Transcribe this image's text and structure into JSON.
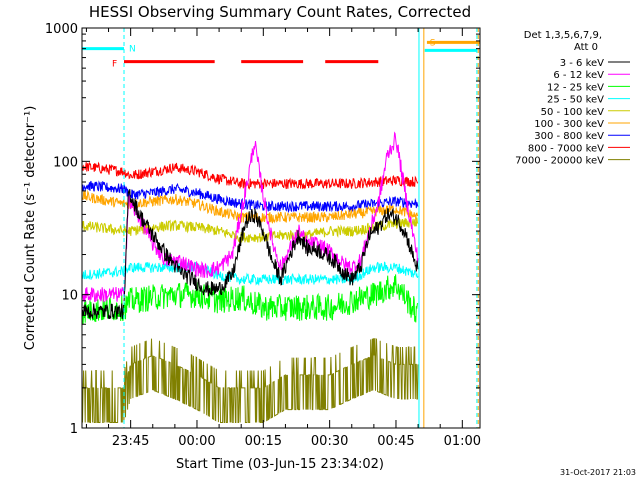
{
  "chart_data": {
    "type": "line",
    "title": "HESSI Observing Summary Count Rates, Corrected",
    "xlabel": "Start Time (03-Jun-15 23:34:02)",
    "ylabel": "Corrected Count Rate (s⁻¹ detector⁻¹)",
    "y_scale": "log",
    "ylim": [
      1,
      1000
    ],
    "xlim_minutes": [
      -11,
      79
    ],
    "x_ticks": [
      {
        "m": 0,
        "label": "23:45"
      },
      {
        "m": 15,
        "label": "00:00"
      },
      {
        "m": 30,
        "label": "00:15"
      },
      {
        "m": 45,
        "label": "00:30"
      },
      {
        "m": 60,
        "label": "00:45"
      },
      {
        "m": 75,
        "label": "01:00"
      }
    ],
    "y_ticks": [
      {
        "v": 1,
        "label": "1"
      },
      {
        "v": 10,
        "label": "10"
      },
      {
        "v": 100,
        "label": "100"
      },
      {
        "v": 1000,
        "label": "1000"
      }
    ],
    "legend_header": [
      "Det 1,3,5,6,7,9,",
      "Att 0"
    ],
    "legend_position": "right",
    "timestamp": "31-Oct-2017 21:03",
    "series": [
      {
        "name": "3 - 6 keV",
        "color": "#000000",
        "x": [
          -11,
          -1.5,
          -0.5,
          2,
          5,
          8,
          11,
          14,
          17,
          20,
          23,
          26,
          28,
          30,
          32,
          34,
          36,
          38,
          40,
          42,
          44,
          46,
          48,
          50,
          52,
          54,
          56,
          58,
          60,
          62,
          65
        ],
        "y": [
          7.5,
          7.5,
          60,
          40,
          28,
          20,
          15,
          13,
          11,
          11,
          14,
          35,
          40,
          30,
          18,
          13,
          20,
          28,
          22,
          22,
          20,
          18,
          15,
          13,
          16,
          28,
          32,
          40,
          38,
          30,
          15
        ]
      },
      {
        "name": "6 - 12 keV",
        "color": "#ff00ff",
        "x": [
          -11,
          -1.5,
          -0.5,
          2,
          5,
          8,
          11,
          14,
          17,
          20,
          23,
          26,
          28,
          30,
          32,
          34,
          36,
          38,
          40,
          42,
          44,
          46,
          48,
          50,
          52,
          54,
          56,
          58,
          60,
          62,
          65
        ],
        "y": [
          10,
          10,
          50,
          38,
          24,
          18,
          18,
          16,
          15,
          16,
          20,
          60,
          140,
          55,
          25,
          16,
          22,
          30,
          24,
          24,
          22,
          20,
          17,
          16,
          18,
          30,
          48,
          110,
          150,
          60,
          18
        ]
      },
      {
        "name": "12 - 25 keV",
        "color": "#00ff00",
        "x": [
          -11,
          -1.5,
          0,
          5,
          10,
          15,
          20,
          25,
          30,
          35,
          40,
          45,
          50,
          55,
          60,
          65
        ],
        "y": [
          7.5,
          8,
          9,
          9.5,
          10,
          10,
          9,
          9.5,
          8,
          8,
          8,
          8,
          9,
          10,
          12,
          7
        ]
      },
      {
        "name": "25 - 50 keV",
        "color": "#00ffff",
        "x": [
          -11,
          -1.5,
          0,
          5,
          10,
          15,
          20,
          25,
          30,
          35,
          40,
          45,
          50,
          55,
          60,
          65
        ],
        "y": [
          14,
          15,
          16,
          16,
          16,
          16,
          14,
          13,
          13,
          13,
          13,
          13,
          13,
          16,
          16,
          14
        ]
      },
      {
        "name": "50 - 100 keV",
        "color": "#cccc00",
        "x": [
          -11,
          -1.5,
          0,
          5,
          10,
          15,
          20,
          25,
          30,
          35,
          40,
          45,
          50,
          55,
          60,
          65
        ],
        "y": [
          33,
          30,
          30,
          32,
          33,
          32,
          30,
          27,
          27,
          28,
          28,
          30,
          30,
          32,
          34,
          35
        ]
      },
      {
        "name": "100 - 300 keV",
        "color": "#ffa500",
        "x": [
          -11,
          -1.5,
          0,
          5,
          10,
          15,
          20,
          25,
          30,
          35,
          40,
          45,
          50,
          55,
          60,
          65
        ],
        "y": [
          55,
          48,
          48,
          50,
          52,
          48,
          42,
          38,
          38,
          38,
          38,
          38,
          40,
          42,
          44,
          38
        ]
      },
      {
        "name": "300 - 800 keV",
        "color": "#0000ff",
        "x": [
          -11,
          -1.5,
          0,
          5,
          10,
          15,
          20,
          25,
          30,
          35,
          40,
          45,
          50,
          55,
          60,
          65
        ],
        "y": [
          66,
          62,
          56,
          58,
          62,
          58,
          52,
          48,
          46,
          46,
          46,
          46,
          46,
          48,
          50,
          48
        ]
      },
      {
        "name": "800 - 7000 keV",
        "color": "#ff0000",
        "x": [
          -11,
          -1.5,
          0,
          5,
          10,
          15,
          20,
          25,
          30,
          35,
          40,
          45,
          50,
          55,
          60,
          65
        ],
        "y": [
          92,
          84,
          78,
          84,
          90,
          84,
          74,
          68,
          68,
          68,
          68,
          68,
          68,
          70,
          72,
          70
        ]
      },
      {
        "name": "7000 - 20000 keV",
        "color": "#808000",
        "x": [
          -11,
          -1.5,
          0,
          5,
          10,
          15,
          20,
          25,
          30,
          35,
          40,
          45,
          50,
          55,
          60,
          65
        ],
        "y": [
          2,
          2,
          3,
          3.5,
          3,
          2.5,
          2,
          2,
          2,
          2.5,
          2.5,
          2.5,
          3,
          3.5,
          3,
          3
        ]
      }
    ],
    "flags": [
      {
        "label": "N",
        "color": "#00ffff",
        "x": -1.5,
        "flag_y": 700,
        "segments": [
          [
            -11,
            -1.5
          ]
        ]
      },
      {
        "label": "F",
        "color": "#ff0000",
        "x": -1.5,
        "flag_y": 560,
        "segments": [
          [
            -1.5,
            19
          ],
          [
            25,
            39
          ],
          [
            44,
            56
          ]
        ]
      },
      {
        "label": "S",
        "color": "#ffa500",
        "x": 66.5,
        "flag_y": 780,
        "segments": [
          [
            67,
            79
          ]
        ]
      }
    ],
    "vertical_markers": [
      {
        "x": -1.5,
        "color": "#00ffff",
        "style": "dashed"
      },
      {
        "x": 65.2,
        "color": "#00ffff",
        "style": "solid"
      },
      {
        "x": 66.3,
        "color": "#ffa500",
        "style": "solid"
      },
      {
        "x": 78.3,
        "color": "#00ffff",
        "style": "dashed"
      },
      {
        "x": 78.6,
        "color": "#ffa500",
        "style": "dashed"
      }
    ],
    "saa_level": {
      "color": "#00ffff",
      "y": 680,
      "segments": [
        [
          66.5,
          78.3
        ]
      ]
    }
  }
}
